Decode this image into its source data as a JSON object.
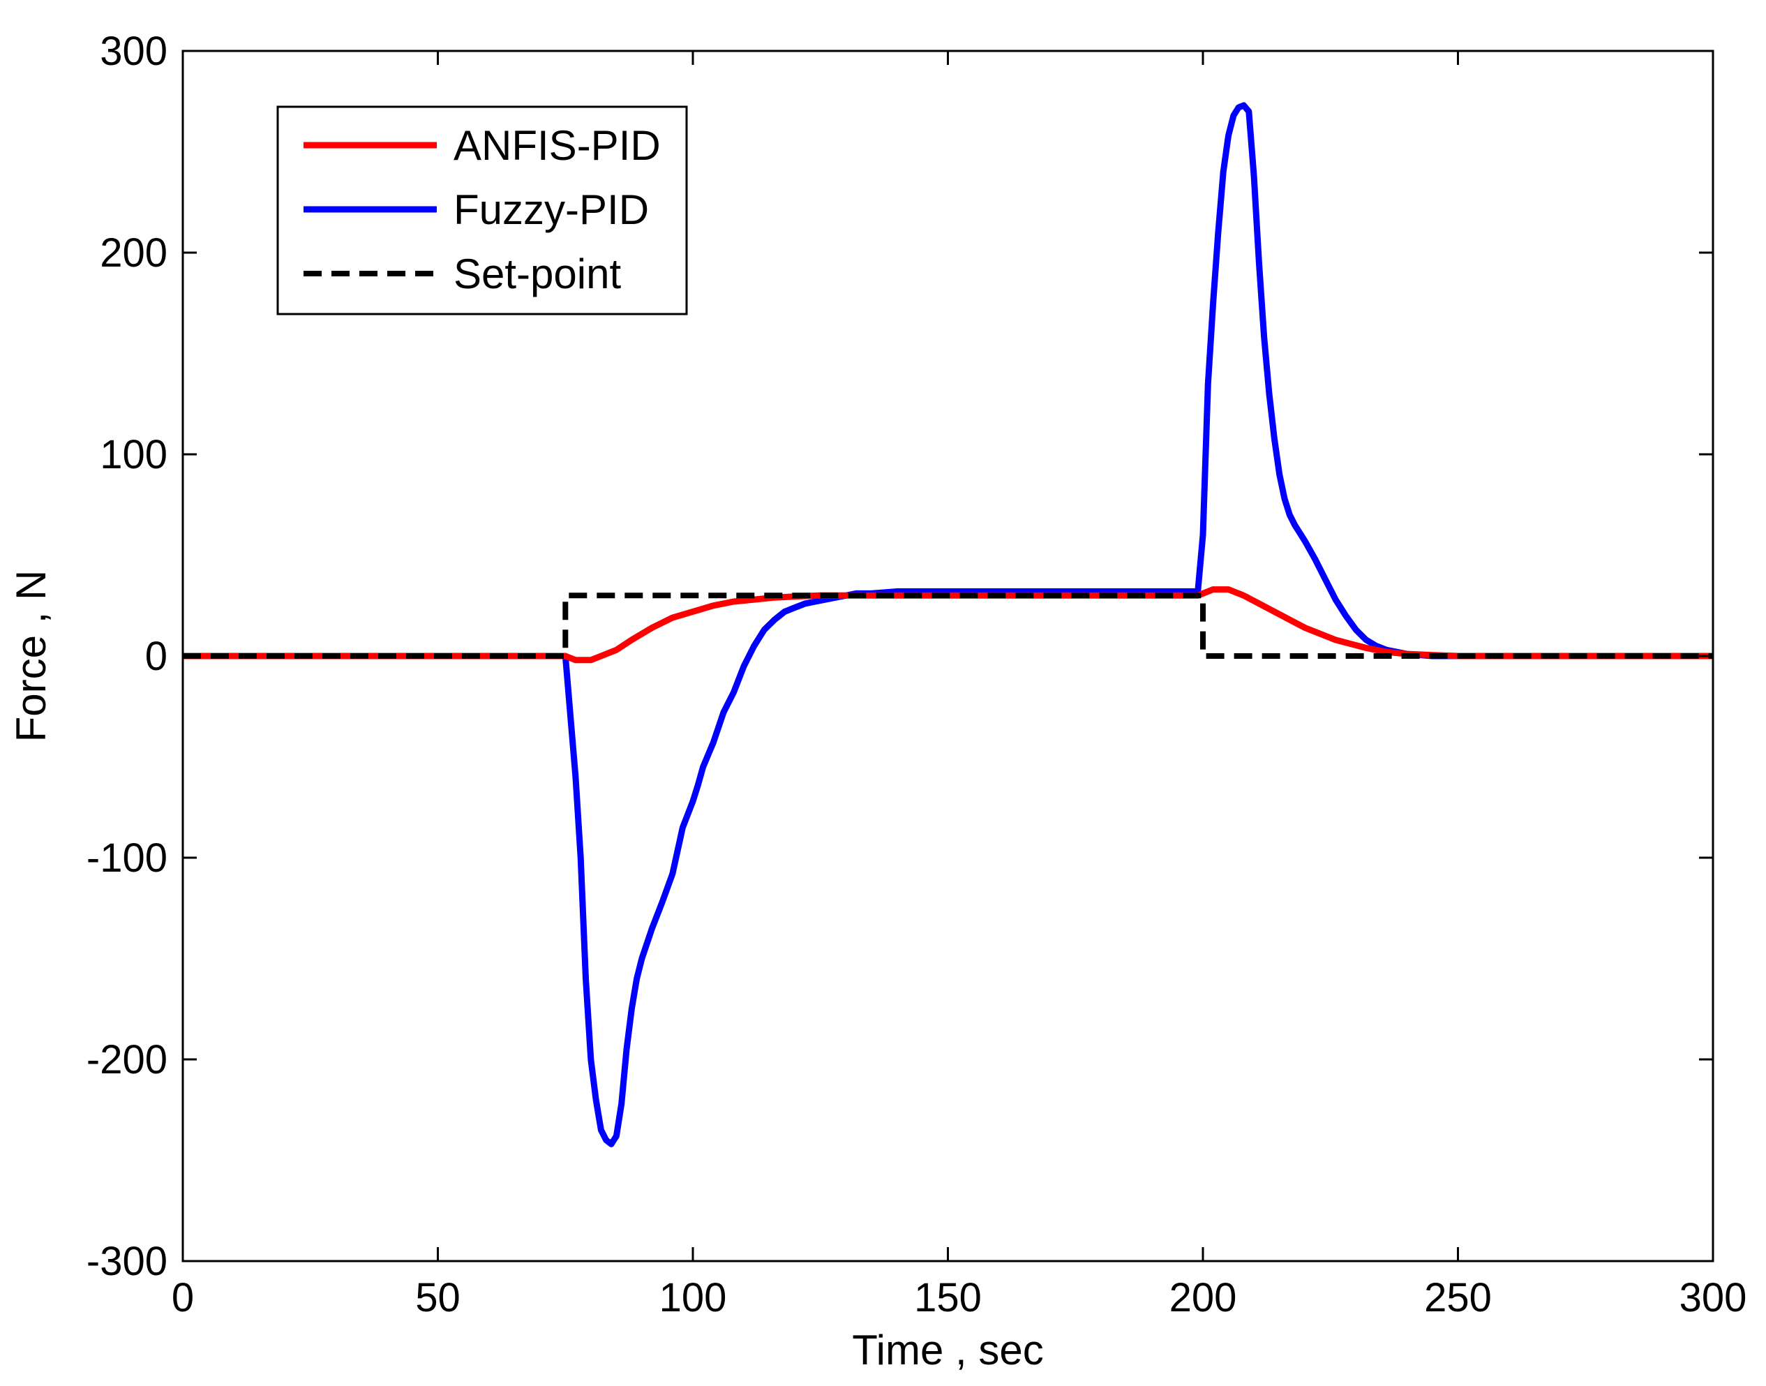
{
  "chart_data": {
    "type": "line",
    "title": "",
    "xlabel": "Time , sec",
    "ylabel": "Force , N",
    "xlim": [
      0,
      300
    ],
    "ylim": [
      -300,
      300
    ],
    "xticks": [
      0,
      50,
      100,
      150,
      200,
      250,
      300
    ],
    "yticks": [
      -300,
      -200,
      -100,
      0,
      100,
      200,
      300
    ],
    "xtick_labels": [
      "0",
      "50",
      "100",
      "150",
      "200",
      "250",
      "300"
    ],
    "ytick_labels": [
      "-300",
      "-200",
      "-100",
      "0",
      "100",
      "200",
      "300"
    ],
    "grid": false,
    "legend_position": "top-left",
    "series": [
      {
        "name": "ANFIS-PID",
        "color": "#ff0000",
        "style": "solid",
        "x": [
          0,
          75,
          77,
          80,
          82,
          85,
          88,
          92,
          96,
          100,
          104,
          108,
          112,
          116,
          120,
          125,
          130,
          140,
          150,
          175,
          199,
          200,
          202,
          205,
          208,
          211,
          214,
          217,
          220,
          223,
          226,
          229,
          232,
          236,
          240,
          245,
          250,
          275,
          300
        ],
        "y": [
          0,
          0,
          -2,
          -2,
          0,
          3,
          8,
          14,
          19,
          22,
          25,
          27,
          28,
          29,
          29.5,
          30,
          30,
          30,
          30,
          30,
          30,
          31,
          33,
          33,
          30,
          26,
          22,
          18,
          14,
          11,
          8,
          6,
          4,
          2,
          1,
          0.5,
          0,
          0,
          0
        ]
      },
      {
        "name": "Fuzzy-PID",
        "color": "#0000ff",
        "style": "solid",
        "x": [
          0,
          75,
          76,
          77,
          78,
          79,
          80,
          81,
          82,
          83,
          84,
          85,
          86,
          87,
          88,
          89,
          90,
          92,
          94,
          96,
          98,
          100,
          101,
          102,
          104,
          106,
          108,
          110,
          112,
          114,
          116,
          117,
          118,
          120,
          122,
          124,
          126,
          128,
          130,
          132,
          135,
          140,
          150,
          170,
          199,
          200,
          201,
          202,
          203,
          204,
          205,
          206,
          207,
          208,
          209,
          210,
          211,
          212,
          213,
          214,
          215,
          216,
          217,
          218,
          220,
          222,
          224,
          226,
          228,
          230,
          232,
          234,
          236,
          238,
          240,
          245,
          250,
          275,
          300
        ],
        "y": [
          0,
          0,
          -30,
          -60,
          -100,
          -160,
          -200,
          -220,
          -235,
          -240,
          -242,
          -238,
          -222,
          -195,
          -175,
          -160,
          -150,
          -135,
          -122,
          -108,
          -85,
          -72,
          -64,
          -55,
          -43,
          -28,
          -18,
          -5,
          5,
          13,
          18,
          20,
          22,
          24,
          26,
          27,
          28,
          29,
          30,
          31,
          31,
          32,
          32,
          32,
          32,
          60,
          135,
          175,
          210,
          240,
          258,
          268,
          272,
          273,
          270,
          238,
          195,
          158,
          130,
          108,
          90,
          78,
          70,
          65,
          57,
          48,
          38,
          28,
          20,
          13,
          8,
          5,
          3,
          2,
          1,
          0,
          0,
          0,
          0
        ]
      },
      {
        "name": "Set-point",
        "color": "#000000",
        "style": "dashed",
        "x": [
          0,
          75,
          75,
          200,
          200,
          300
        ],
        "y": [
          0,
          0,
          30,
          30,
          0,
          0
        ]
      }
    ]
  }
}
